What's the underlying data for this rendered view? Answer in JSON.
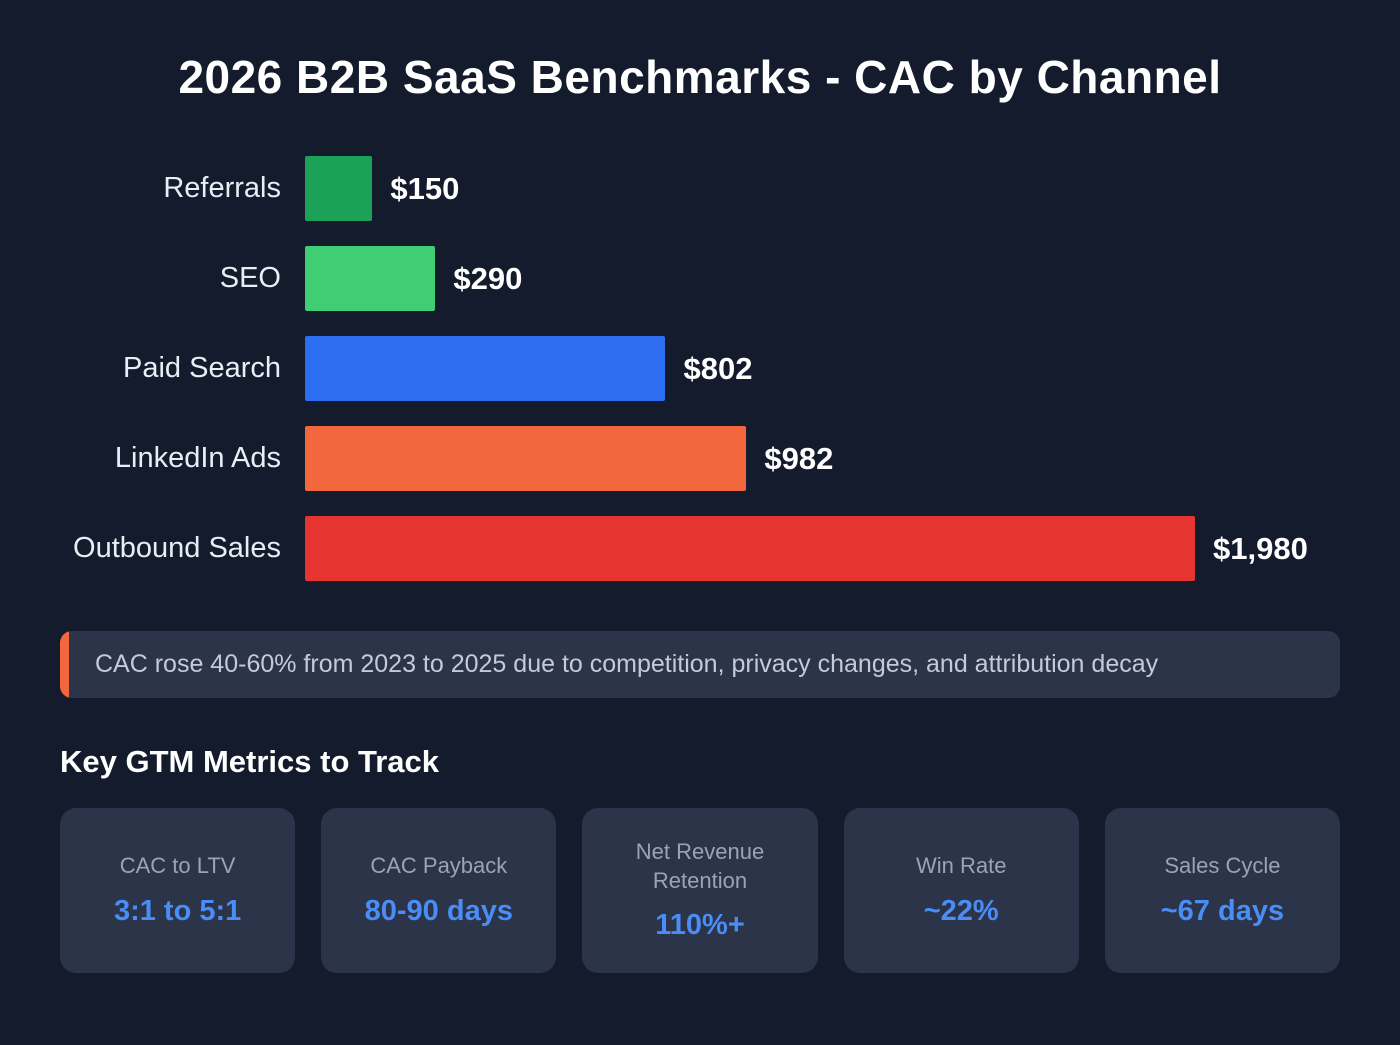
{
  "title": "2026 B2B SaaS Benchmarks - CAC by Channel",
  "chart_data": {
    "type": "bar",
    "orientation": "horizontal",
    "title": "2026 B2B SaaS Benchmarks - CAC by Channel",
    "categories": [
      "Referrals",
      "SEO",
      "Paid Search",
      "LinkedIn Ads",
      "Outbound Sales"
    ],
    "values": [
      150,
      290,
      802,
      982,
      1980
    ],
    "value_labels": [
      "$150",
      "$290",
      "$802",
      "$982",
      "$1,980"
    ],
    "bar_colors": [
      "#1ba258",
      "#3fce74",
      "#2d6ef0",
      "#f2673d",
      "#e63431"
    ],
    "xlim": [
      0,
      1980
    ],
    "grid": false,
    "legend": false
  },
  "callout": {
    "text": "CAC rose 40-60% from 2023 to 2025 due to competition, privacy changes, and attribution decay",
    "accent_color": "#f2673d"
  },
  "metrics_section": {
    "heading": "Key GTM Metrics to Track",
    "value_color": "#4a8df7",
    "cards": [
      {
        "label": "CAC to LTV",
        "value": "3:1 to 5:1"
      },
      {
        "label": "CAC Payback",
        "value": "80-90 days"
      },
      {
        "label": "Net Revenue Retention",
        "value": "110%+"
      },
      {
        "label": "Win Rate",
        "value": "~22%"
      },
      {
        "label": "Sales Cycle",
        "value": "~67 days"
      }
    ]
  },
  "colors": {
    "background": "#131b2d",
    "card_background": "#2b3448"
  }
}
